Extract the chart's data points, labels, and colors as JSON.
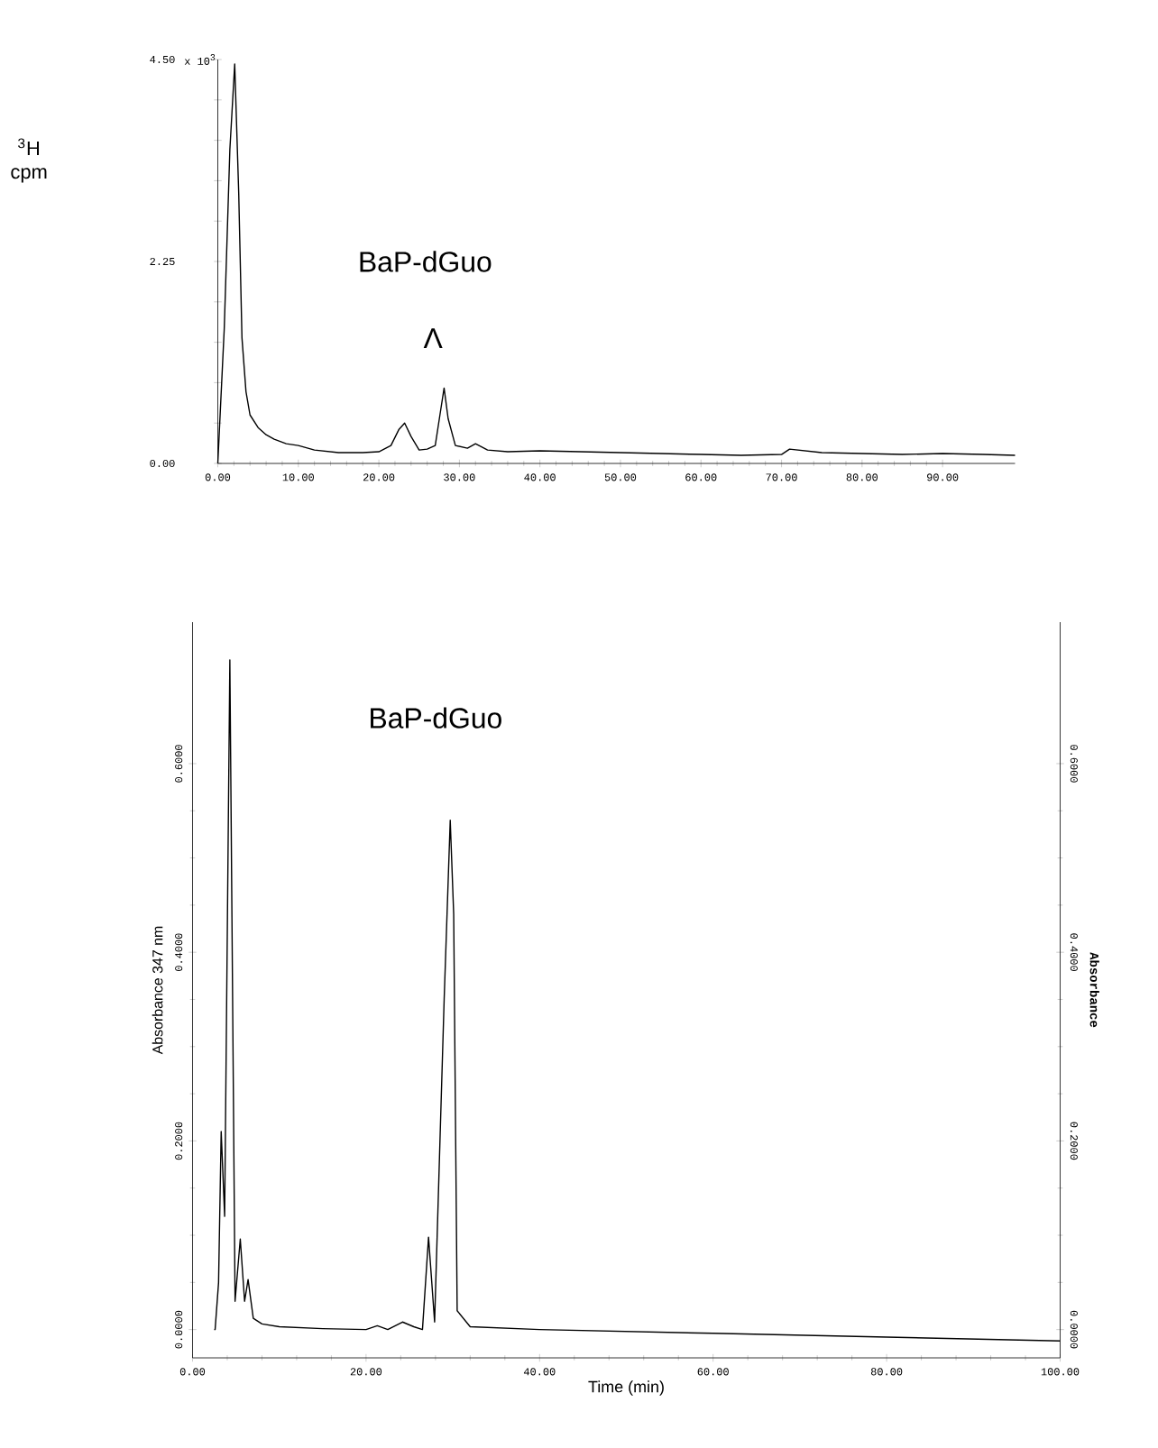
{
  "chart_data": [
    {
      "type": "line",
      "ylabel": "$^{3}$H cpm",
      "color": "#000000",
      "x": [
        0,
        0.8,
        1.5,
        2.1,
        2.6,
        3.0,
        3.5,
        4.0,
        5.0,
        6.0,
        7.0,
        8.5,
        10,
        12,
        15,
        18,
        20,
        21.5,
        22.5,
        23.2,
        24,
        25,
        26,
        27,
        27.6,
        28.1,
        28.6,
        29.5,
        31,
        32,
        33.5,
        36,
        40,
        45,
        50,
        55,
        60,
        65,
        70,
        71,
        75,
        80,
        85,
        90,
        95,
        99
      ],
      "values": [
        0,
        1.5,
        3.5,
        4.45,
        3.0,
        1.4,
        0.8,
        0.54,
        0.4,
        0.32,
        0.27,
        0.22,
        0.2,
        0.15,
        0.12,
        0.12,
        0.13,
        0.2,
        0.38,
        0.45,
        0.3,
        0.15,
        0.16,
        0.2,
        0.55,
        0.84,
        0.5,
        0.2,
        0.17,
        0.22,
        0.15,
        0.13,
        0.14,
        0.13,
        0.12,
        0.11,
        0.1,
        0.09,
        0.1,
        0.16,
        0.12,
        0.11,
        0.1,
        0.11,
        0.1,
        0.09
      ],
      "xlim": [
        0,
        99
      ],
      "ylim": [
        0,
        4.5
      ],
      "xticks": [
        {
          "value": 0,
          "label": "0.00"
        },
        {
          "value": 10,
          "label": "10.00"
        },
        {
          "value": 20,
          "label": "20.00"
        },
        {
          "value": 30,
          "label": "30.00"
        },
        {
          "value": 40,
          "label": "40.00"
        },
        {
          "value": 50,
          "label": "50.00"
        },
        {
          "value": 60,
          "label": "60.00"
        },
        {
          "value": 70,
          "label": "70.00"
        },
        {
          "value": 80,
          "label": "80.00"
        },
        {
          "value": 90,
          "label": "90.00"
        }
      ],
      "yticks": [
        {
          "value": 0,
          "label": "0.00"
        },
        {
          "value": 0.45,
          "label": null
        },
        {
          "value": 0.9,
          "label": null
        },
        {
          "value": 1.35,
          "label": null
        },
        {
          "value": 1.8,
          "label": null
        },
        {
          "value": 2.25,
          "label": "2.25"
        },
        {
          "value": 2.7,
          "label": null
        },
        {
          "value": 3.15,
          "label": null
        },
        {
          "value": 3.6,
          "label": null
        },
        {
          "value": 4.05,
          "label": null
        },
        {
          "value": 4.5,
          "label": "4.50"
        }
      ],
      "annotations": [
        "BaP-dGuo",
        "Λ",
        "x 10$^{3}$"
      ]
    },
    {
      "type": "line",
      "xlabel": "Time (min)",
      "ylabel": "Absorbance   347 nm",
      "y2label": "Absorbance",
      "color": "#000000",
      "x": [
        2.5,
        2.6,
        3.0,
        3.3,
        3.7,
        4.3,
        4.9,
        5.5,
        6.0,
        6.4,
        7.0,
        8,
        10,
        15,
        20,
        21.3,
        22.5,
        24.2,
        25.5,
        26.5,
        27.2,
        27.9,
        29.0,
        29.7,
        30.1,
        30.5,
        32,
        40,
        60,
        80,
        100
      ],
      "values": [
        0,
        0,
        0.05,
        0.21,
        0.12,
        0.71,
        0.03,
        0.096,
        0.03,
        0.053,
        0.012,
        0.006,
        0.003,
        0.001,
        0,
        0.004,
        0,
        0.008,
        0.003,
        0,
        0.098,
        0.008,
        0.35,
        0.54,
        0.44,
        0.02,
        0.003,
        0,
        -0.004,
        -0.008,
        -0.012
      ],
      "xlim": [
        0,
        100
      ],
      "ylim": [
        -0.03,
        0.75
      ],
      "y2lim": [
        -0.03,
        0.75
      ],
      "xticks": [
        {
          "value": 0,
          "label": "0.00"
        },
        {
          "value": 20,
          "label": "20.00"
        },
        {
          "value": 40,
          "label": "40.00"
        },
        {
          "value": 60,
          "label": "60.00"
        },
        {
          "value": 80,
          "label": "80.00"
        },
        {
          "value": 100,
          "label": "100.00"
        }
      ],
      "yticks": [
        {
          "value": 0,
          "label": "0.0000"
        },
        {
          "value": 0.2,
          "label": "0.2000"
        },
        {
          "value": 0.4,
          "label": "0.4000"
        },
        {
          "value": 0.6,
          "label": "0.6000"
        }
      ],
      "y2ticks": [
        {
          "value": 0,
          "label": "0.0000"
        },
        {
          "value": 0.2,
          "label": "0.2000"
        },
        {
          "value": 0.4,
          "label": "0.4000"
        },
        {
          "value": 0.6,
          "label": "0.6000"
        }
      ],
      "annotations": [
        "BaP-dGuo"
      ]
    }
  ]
}
